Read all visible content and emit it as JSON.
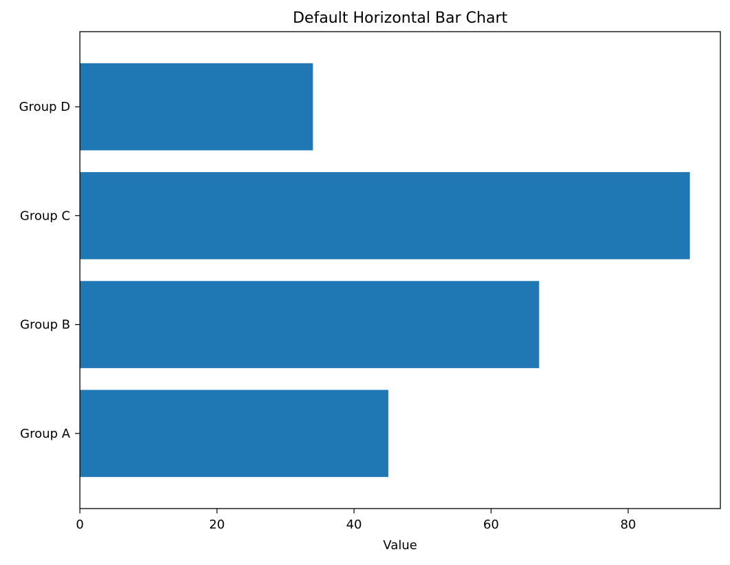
{
  "chart_data": {
    "type": "bar",
    "orientation": "horizontal",
    "title": "Default Horizontal Bar Chart",
    "xlabel": "Value",
    "ylabel": "",
    "categories": [
      "Group A",
      "Group B",
      "Group C",
      "Group D"
    ],
    "values": [
      45,
      67,
      89,
      34
    ],
    "xlim": [
      0,
      93.45
    ],
    "x_ticks": [
      0,
      20,
      40,
      60,
      80
    ],
    "bar_color": "#1f77b4",
    "grid": false,
    "legend": "none"
  }
}
